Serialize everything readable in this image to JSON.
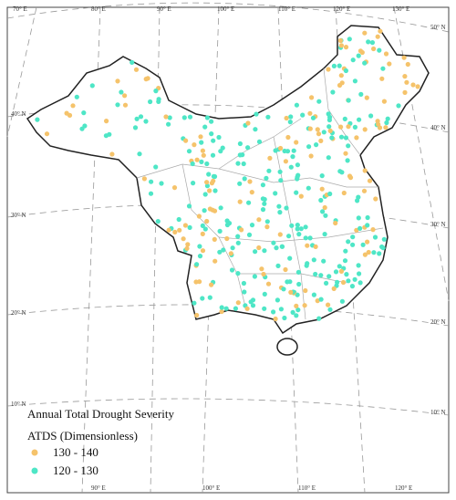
{
  "graticule": {
    "top_labels": [
      "70° E",
      "80° E",
      "90° E",
      "100° E",
      "110° E",
      "120° E",
      "130° E"
    ],
    "bottom_labels": [
      "90° E",
      "100° E",
      "110° E",
      "120° E"
    ],
    "left_labels": [
      "40° N",
      "30° N",
      "20° N",
      "10° N"
    ],
    "right_labels": [
      "50° N",
      "40° N",
      "30° N",
      "20° N",
      "10° N"
    ]
  },
  "legend": {
    "title": "Annual Total Drought Severity",
    "subtitle": "ATDS (Dimensionless)",
    "items": [
      {
        "label": "130 - 140",
        "color": "#f5c36b"
      },
      {
        "label": "120 - 130",
        "color": "#4ee6c6"
      }
    ]
  }
}
